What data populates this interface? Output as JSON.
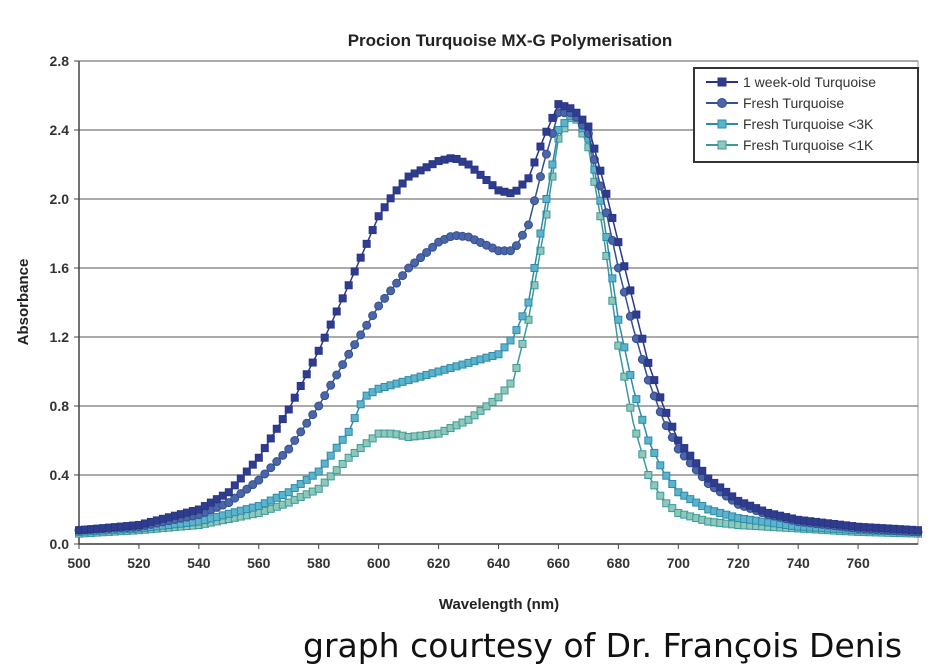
{
  "chart_data": {
    "type": "line",
    "title": "Procion Turquoise MX-G Polymerisation",
    "xlabel": "Wavelength (nm)",
    "ylabel": "Absorbance",
    "xlim": [
      500,
      780
    ],
    "ylim": [
      0,
      2.8
    ],
    "xticks": [
      "500",
      "520",
      "540",
      "560",
      "580",
      "600",
      "620",
      "640",
      "660",
      "680",
      "700",
      "720",
      "740",
      "760"
    ],
    "yticks": [
      "0.0",
      "0.4",
      "0.8",
      "1.2",
      "1.6",
      "2.0",
      "2.4",
      "2.8"
    ],
    "grid": "horizontal",
    "legend_position": "top-right",
    "series": [
      {
        "name": "1 week-old Turquoise",
        "marker": "square",
        "color": "#2a3585",
        "fill": "#2f3d8f",
        "x": [
          500,
          520,
          540,
          550,
          560,
          570,
          580,
          590,
          600,
          605,
          610,
          620,
          625,
          630,
          640,
          645,
          650,
          655,
          660,
          665,
          670,
          675,
          680,
          685,
          690,
          695,
          700,
          710,
          720,
          730,
          740,
          760,
          780
        ],
        "y": [
          0.08,
          0.11,
          0.2,
          0.3,
          0.5,
          0.78,
          1.12,
          1.5,
          1.9,
          2.03,
          2.13,
          2.22,
          2.24,
          2.2,
          2.05,
          2.03,
          2.12,
          2.35,
          2.55,
          2.52,
          2.42,
          2.1,
          1.75,
          1.4,
          1.05,
          0.8,
          0.6,
          0.38,
          0.25,
          0.18,
          0.14,
          0.1,
          0.08
        ]
      },
      {
        "name": "Fresh Turquoise",
        "marker": "circle",
        "color": "#34508f",
        "fill": "#4a66a8",
        "x": [
          500,
          520,
          540,
          550,
          560,
          570,
          580,
          590,
          600,
          610,
          620,
          625,
          630,
          640,
          645,
          650,
          655,
          660,
          665,
          670,
          675,
          680,
          685,
          690,
          695,
          700,
          710,
          720,
          730,
          740,
          760,
          780
        ],
        "y": [
          0.08,
          0.1,
          0.17,
          0.24,
          0.37,
          0.55,
          0.8,
          1.1,
          1.38,
          1.6,
          1.75,
          1.79,
          1.78,
          1.7,
          1.7,
          1.85,
          2.2,
          2.5,
          2.5,
          2.38,
          2.0,
          1.6,
          1.25,
          0.95,
          0.72,
          0.55,
          0.35,
          0.23,
          0.17,
          0.13,
          0.09,
          0.07
        ]
      },
      {
        "name": "Fresh Turquoise <3K",
        "marker": "square",
        "color": "#2e8aa8",
        "fill": "#5cb4cc",
        "x": [
          500,
          520,
          540,
          560,
          570,
          580,
          590,
          595,
          600,
          610,
          620,
          630,
          640,
          645,
          650,
          655,
          660,
          665,
          670,
          675,
          680,
          685,
          690,
          695,
          700,
          710,
          720,
          740,
          760,
          780
        ],
        "y": [
          0.07,
          0.09,
          0.13,
          0.22,
          0.3,
          0.42,
          0.65,
          0.85,
          0.9,
          0.95,
          1.0,
          1.05,
          1.1,
          1.2,
          1.4,
          1.9,
          2.4,
          2.5,
          2.35,
          1.9,
          1.3,
          0.9,
          0.6,
          0.42,
          0.3,
          0.2,
          0.15,
          0.1,
          0.08,
          0.07
        ]
      },
      {
        "name": "Fresh Turquoise <1K",
        "marker": "square",
        "color": "#3a9a9a",
        "fill": "#8fc8b8",
        "x": [
          500,
          520,
          540,
          560,
          570,
          580,
          590,
          600,
          605,
          610,
          620,
          630,
          640,
          645,
          650,
          655,
          660,
          665,
          670,
          675,
          680,
          685,
          690,
          695,
          700,
          710,
          720,
          740,
          760,
          780
        ],
        "y": [
          0.06,
          0.08,
          0.11,
          0.18,
          0.24,
          0.32,
          0.5,
          0.64,
          0.64,
          0.62,
          0.64,
          0.72,
          0.85,
          0.95,
          1.3,
          1.8,
          2.35,
          2.5,
          2.3,
          1.8,
          1.15,
          0.7,
          0.4,
          0.25,
          0.18,
          0.13,
          0.11,
          0.09,
          0.07,
          0.06
        ]
      }
    ]
  },
  "credit": "graph courtesy of Dr. François Denis"
}
